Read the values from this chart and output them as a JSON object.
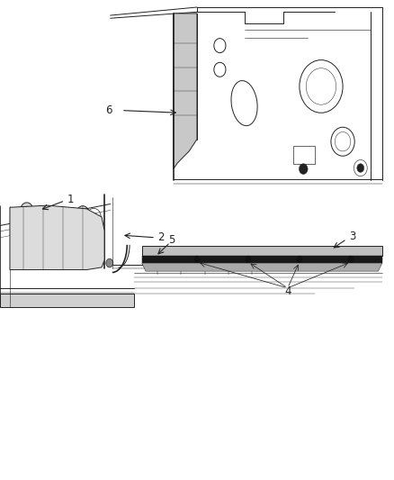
{
  "background_color": "#ffffff",
  "fig_width": 4.38,
  "fig_height": 5.33,
  "dpi": 100,
  "dark": "#222222",
  "gray": "#888888",
  "light_gray": "#d0d0d0",
  "upper_panel_color": "#c8c8c8",
  "scuff_dark": "#1a1a1a",
  "scuff_light": "#b8b6b6"
}
